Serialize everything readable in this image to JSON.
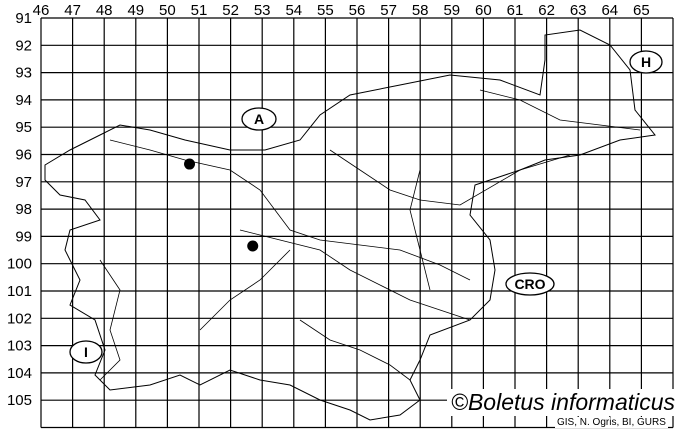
{
  "map": {
    "column_labels": [
      "46",
      "47",
      "48",
      "49",
      "50",
      "51",
      "52",
      "53",
      "54",
      "55",
      "56",
      "57",
      "58",
      "59",
      "60",
      "61",
      "62",
      "63",
      "64",
      "65"
    ],
    "row_labels": [
      "91",
      "92",
      "93",
      "94",
      "95",
      "96",
      "97",
      "98",
      "99",
      "100",
      "101",
      "102",
      "103",
      "104",
      "105"
    ],
    "country_labels": [
      {
        "id": "austria",
        "text": "A"
      },
      {
        "id": "hungary",
        "text": "H"
      },
      {
        "id": "croatia",
        "text": "CRO"
      },
      {
        "id": "italy",
        "text": "I"
      }
    ],
    "records": [
      {
        "grid_column": "50",
        "grid_row": "96"
      },
      {
        "grid_column": "52",
        "grid_row": "99"
      }
    ],
    "colors": {
      "lines": "#000000",
      "background": "#ffffff",
      "dots": "#000000"
    }
  },
  "copyright": "©Boletus informaticus",
  "credit": "GIS, N. Ogris, BI, GURS"
}
